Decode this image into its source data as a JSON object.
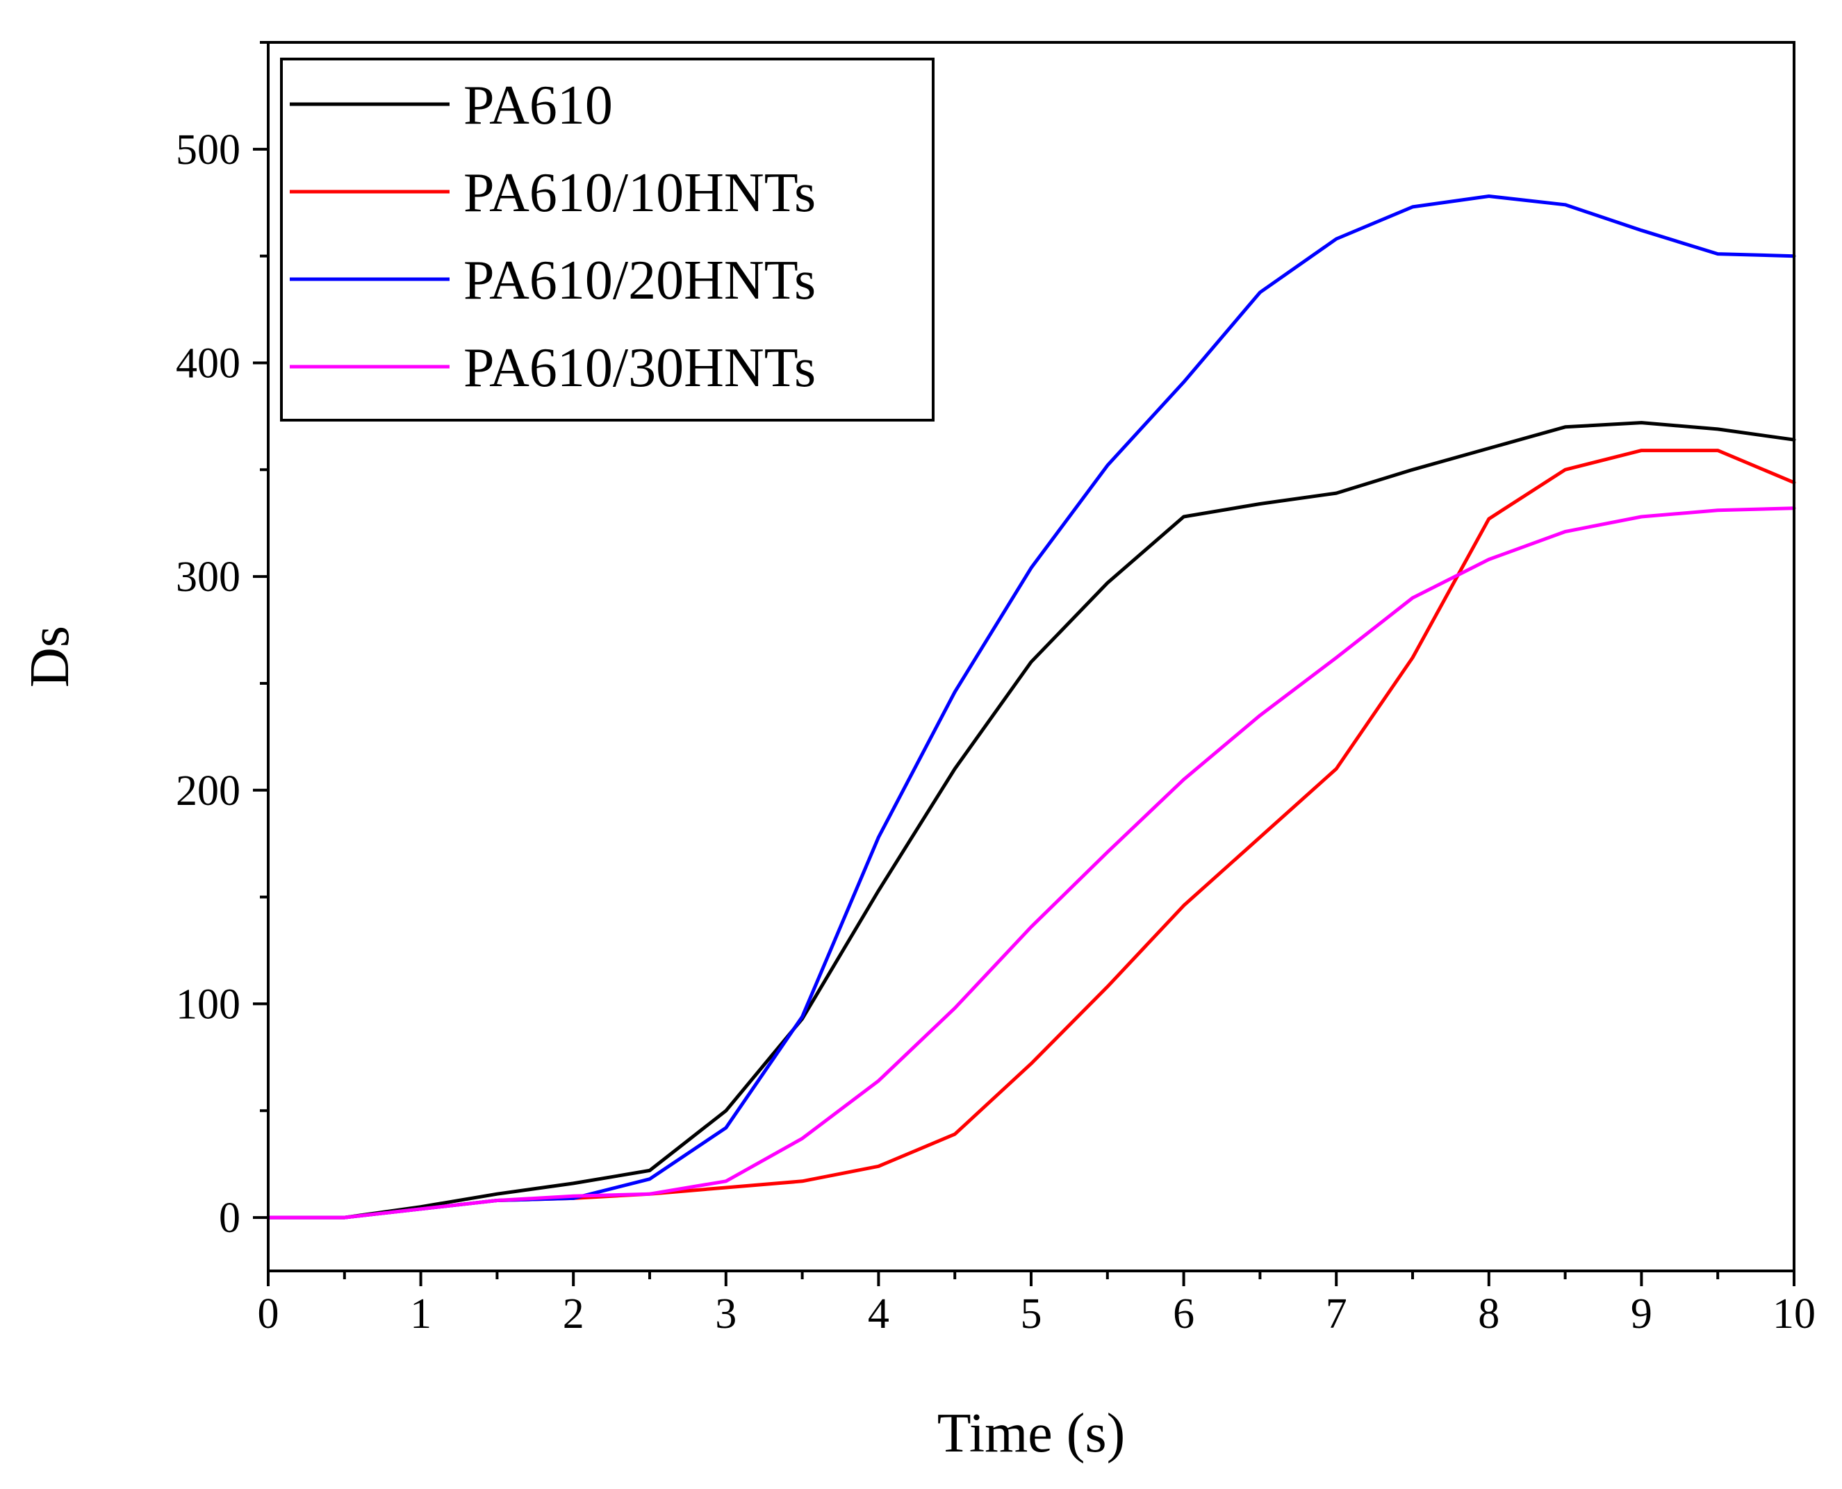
{
  "chart_data": {
    "type": "line",
    "title": "",
    "xlabel": "Time (s)",
    "ylabel": "Ds",
    "xlim": [
      0,
      10
    ],
    "ylim": [
      -25,
      550
    ],
    "xticks": [
      0,
      1,
      2,
      3,
      4,
      5,
      6,
      7,
      8,
      9,
      10
    ],
    "yticks": [
      0,
      100,
      200,
      300,
      400,
      500
    ],
    "legend_position": "top-left",
    "grid": false,
    "x": [
      0,
      0.5,
      1,
      1.5,
      2,
      2.5,
      3,
      3.5,
      4,
      4.5,
      5,
      5.5,
      6,
      6.5,
      7,
      7.5,
      8,
      8.5,
      9,
      9.5,
      10
    ],
    "series": [
      {
        "name": "PA610",
        "color": "#000000",
        "values": [
          0,
          0,
          5,
          11,
          16,
          22,
          50,
          93,
          153,
          210,
          260,
          297,
          328,
          334,
          339,
          350,
          360,
          370,
          372,
          369,
          364
        ]
      },
      {
        "name": "PA610/10HNTs",
        "color": "#ff0000",
        "values": [
          0,
          0,
          4,
          8,
          9,
          11,
          14,
          17,
          24,
          39,
          72,
          108,
          146,
          178,
          210,
          262,
          327,
          350,
          359,
          359,
          344
        ]
      },
      {
        "name": "PA610/20HNTs",
        "color": "#0000ff",
        "values": [
          0,
          0,
          4,
          8,
          9,
          18,
          42,
          94,
          178,
          246,
          304,
          352,
          391,
          433,
          458,
          473,
          478,
          474,
          462,
          451,
          450
        ]
      },
      {
        "name": "PA610/30HNTs",
        "color": "#ff00ff",
        "values": [
          0,
          0,
          4,
          8,
          10,
          11,
          17,
          37,
          64,
          98,
          136,
          171,
          205,
          235,
          262,
          290,
          308,
          321,
          328,
          331,
          332
        ]
      }
    ]
  }
}
